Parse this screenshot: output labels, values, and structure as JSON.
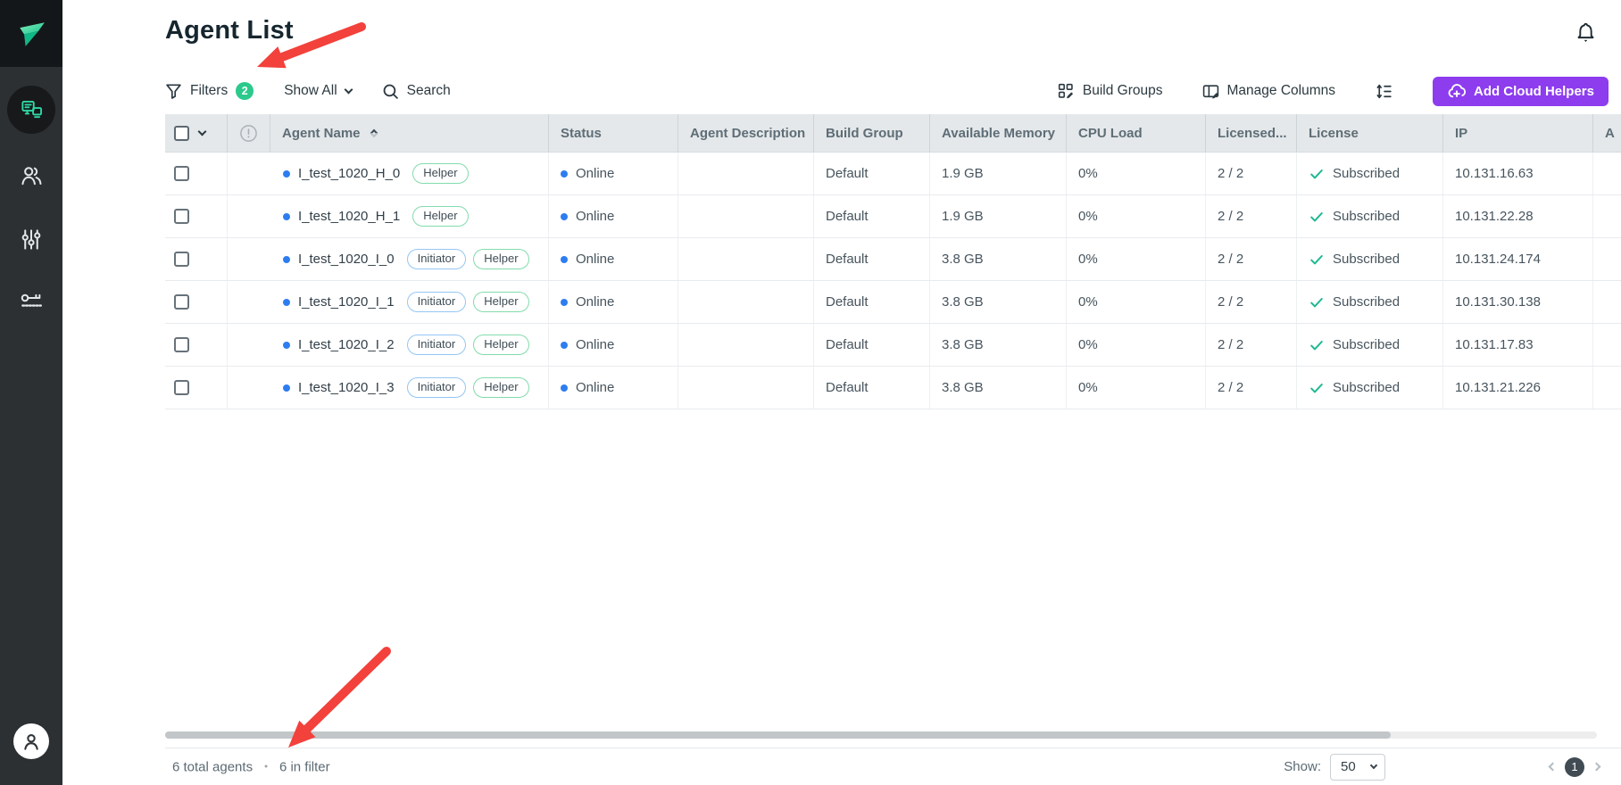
{
  "page": {
    "title": "Agent List"
  },
  "sidebar": {
    "items": [
      {
        "id": "agents",
        "icon": "agents-icon",
        "active": true
      },
      {
        "id": "users",
        "icon": "users-icon",
        "active": false
      },
      {
        "id": "settings",
        "icon": "sliders-icon",
        "active": false
      },
      {
        "id": "licenses",
        "icon": "key-icon",
        "active": false
      }
    ]
  },
  "toolbar": {
    "filters_label": "Filters",
    "filters_count": "2",
    "show_all_label": "Show All",
    "search_label": "Search",
    "build_groups_label": "Build Groups",
    "manage_columns_label": "Manage Columns",
    "add_cloud_helpers_label": "Add Cloud Helpers"
  },
  "table": {
    "columns": [
      "",
      "",
      "Agent Name",
      "Status",
      "Agent Description",
      "Build Group",
      "Available Memory",
      "CPU Load",
      "Licensed...",
      "License",
      "IP",
      "A"
    ],
    "rows": [
      {
        "name": "I_test_1020_H_0",
        "badges": [
          "Helper"
        ],
        "status": "Online",
        "description": "",
        "build_group": "Default",
        "available_memory": "1.9 GB",
        "cpu_load": "0%",
        "licensed": "2 / 2",
        "license": "Subscribed",
        "ip": "10.131.16.63"
      },
      {
        "name": "I_test_1020_H_1",
        "badges": [
          "Helper"
        ],
        "status": "Online",
        "description": "",
        "build_group": "Default",
        "available_memory": "1.9 GB",
        "cpu_load": "0%",
        "licensed": "2 / 2",
        "license": "Subscribed",
        "ip": "10.131.22.28"
      },
      {
        "name": "I_test_1020_I_0",
        "badges": [
          "Initiator",
          "Helper"
        ],
        "status": "Online",
        "description": "",
        "build_group": "Default",
        "available_memory": "3.8 GB",
        "cpu_load": "0%",
        "licensed": "2 / 2",
        "license": "Subscribed",
        "ip": "10.131.24.174"
      },
      {
        "name": "I_test_1020_I_1",
        "badges": [
          "Initiator",
          "Helper"
        ],
        "status": "Online",
        "description": "",
        "build_group": "Default",
        "available_memory": "3.8 GB",
        "cpu_load": "0%",
        "licensed": "2 / 2",
        "license": "Subscribed",
        "ip": "10.131.30.138"
      },
      {
        "name": "I_test_1020_I_2",
        "badges": [
          "Initiator",
          "Helper"
        ],
        "status": "Online",
        "description": "",
        "build_group": "Default",
        "available_memory": "3.8 GB",
        "cpu_load": "0%",
        "licensed": "2 / 2",
        "license": "Subscribed",
        "ip": "10.131.17.83"
      },
      {
        "name": "I_test_1020_I_3",
        "badges": [
          "Initiator",
          "Helper"
        ],
        "status": "Online",
        "description": "",
        "build_group": "Default",
        "available_memory": "3.8 GB",
        "cpu_load": "0%",
        "licensed": "2 / 2",
        "license": "Subscribed",
        "ip": "10.131.21.226"
      }
    ]
  },
  "footer": {
    "total_label": "6 total agents",
    "separator": "•",
    "filtered_label": "6 in filter",
    "show_label": "Show:",
    "page_size": "50",
    "current_page": "1"
  },
  "colors": {
    "accent_green": "#2bc98c",
    "accent_purple": "#8d3cee",
    "status_blue": "#2e7df0",
    "success_green": "#1db890",
    "annotation_red": "#f3413b"
  }
}
